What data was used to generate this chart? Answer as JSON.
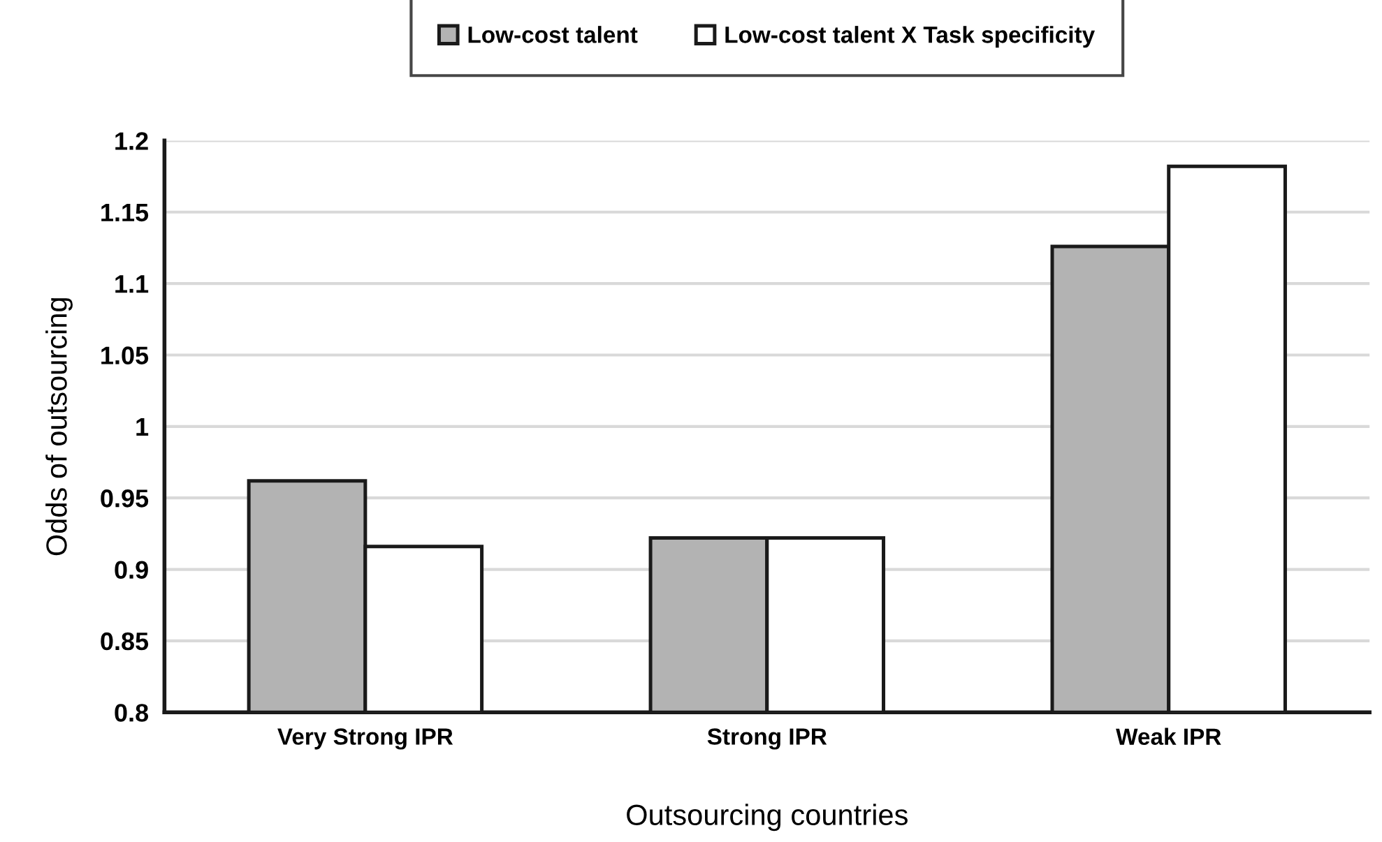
{
  "chart_data": {
    "type": "bar",
    "xlabel": "Outsourcing countries",
    "ylabel": "Odds of outsourcing",
    "categories": [
      "Very Strong IPR",
      "Strong IPR",
      "Weak IPR"
    ],
    "series": [
      {
        "name": "Low-cost talent",
        "color": "#b3b3b3",
        "values": [
          0.962,
          0.922,
          1.126
        ]
      },
      {
        "name": "Low-cost talent X Task specificity",
        "color": "#ffffff",
        "values": [
          0.916,
          0.922,
          1.182
        ]
      }
    ],
    "ylim": [
      0.8,
      1.2
    ],
    "yticks": [
      0.8,
      0.85,
      0.9,
      0.95,
      1,
      1.05,
      1.1,
      1.15,
      1.2
    ],
    "grid": "y",
    "legend": "top"
  }
}
